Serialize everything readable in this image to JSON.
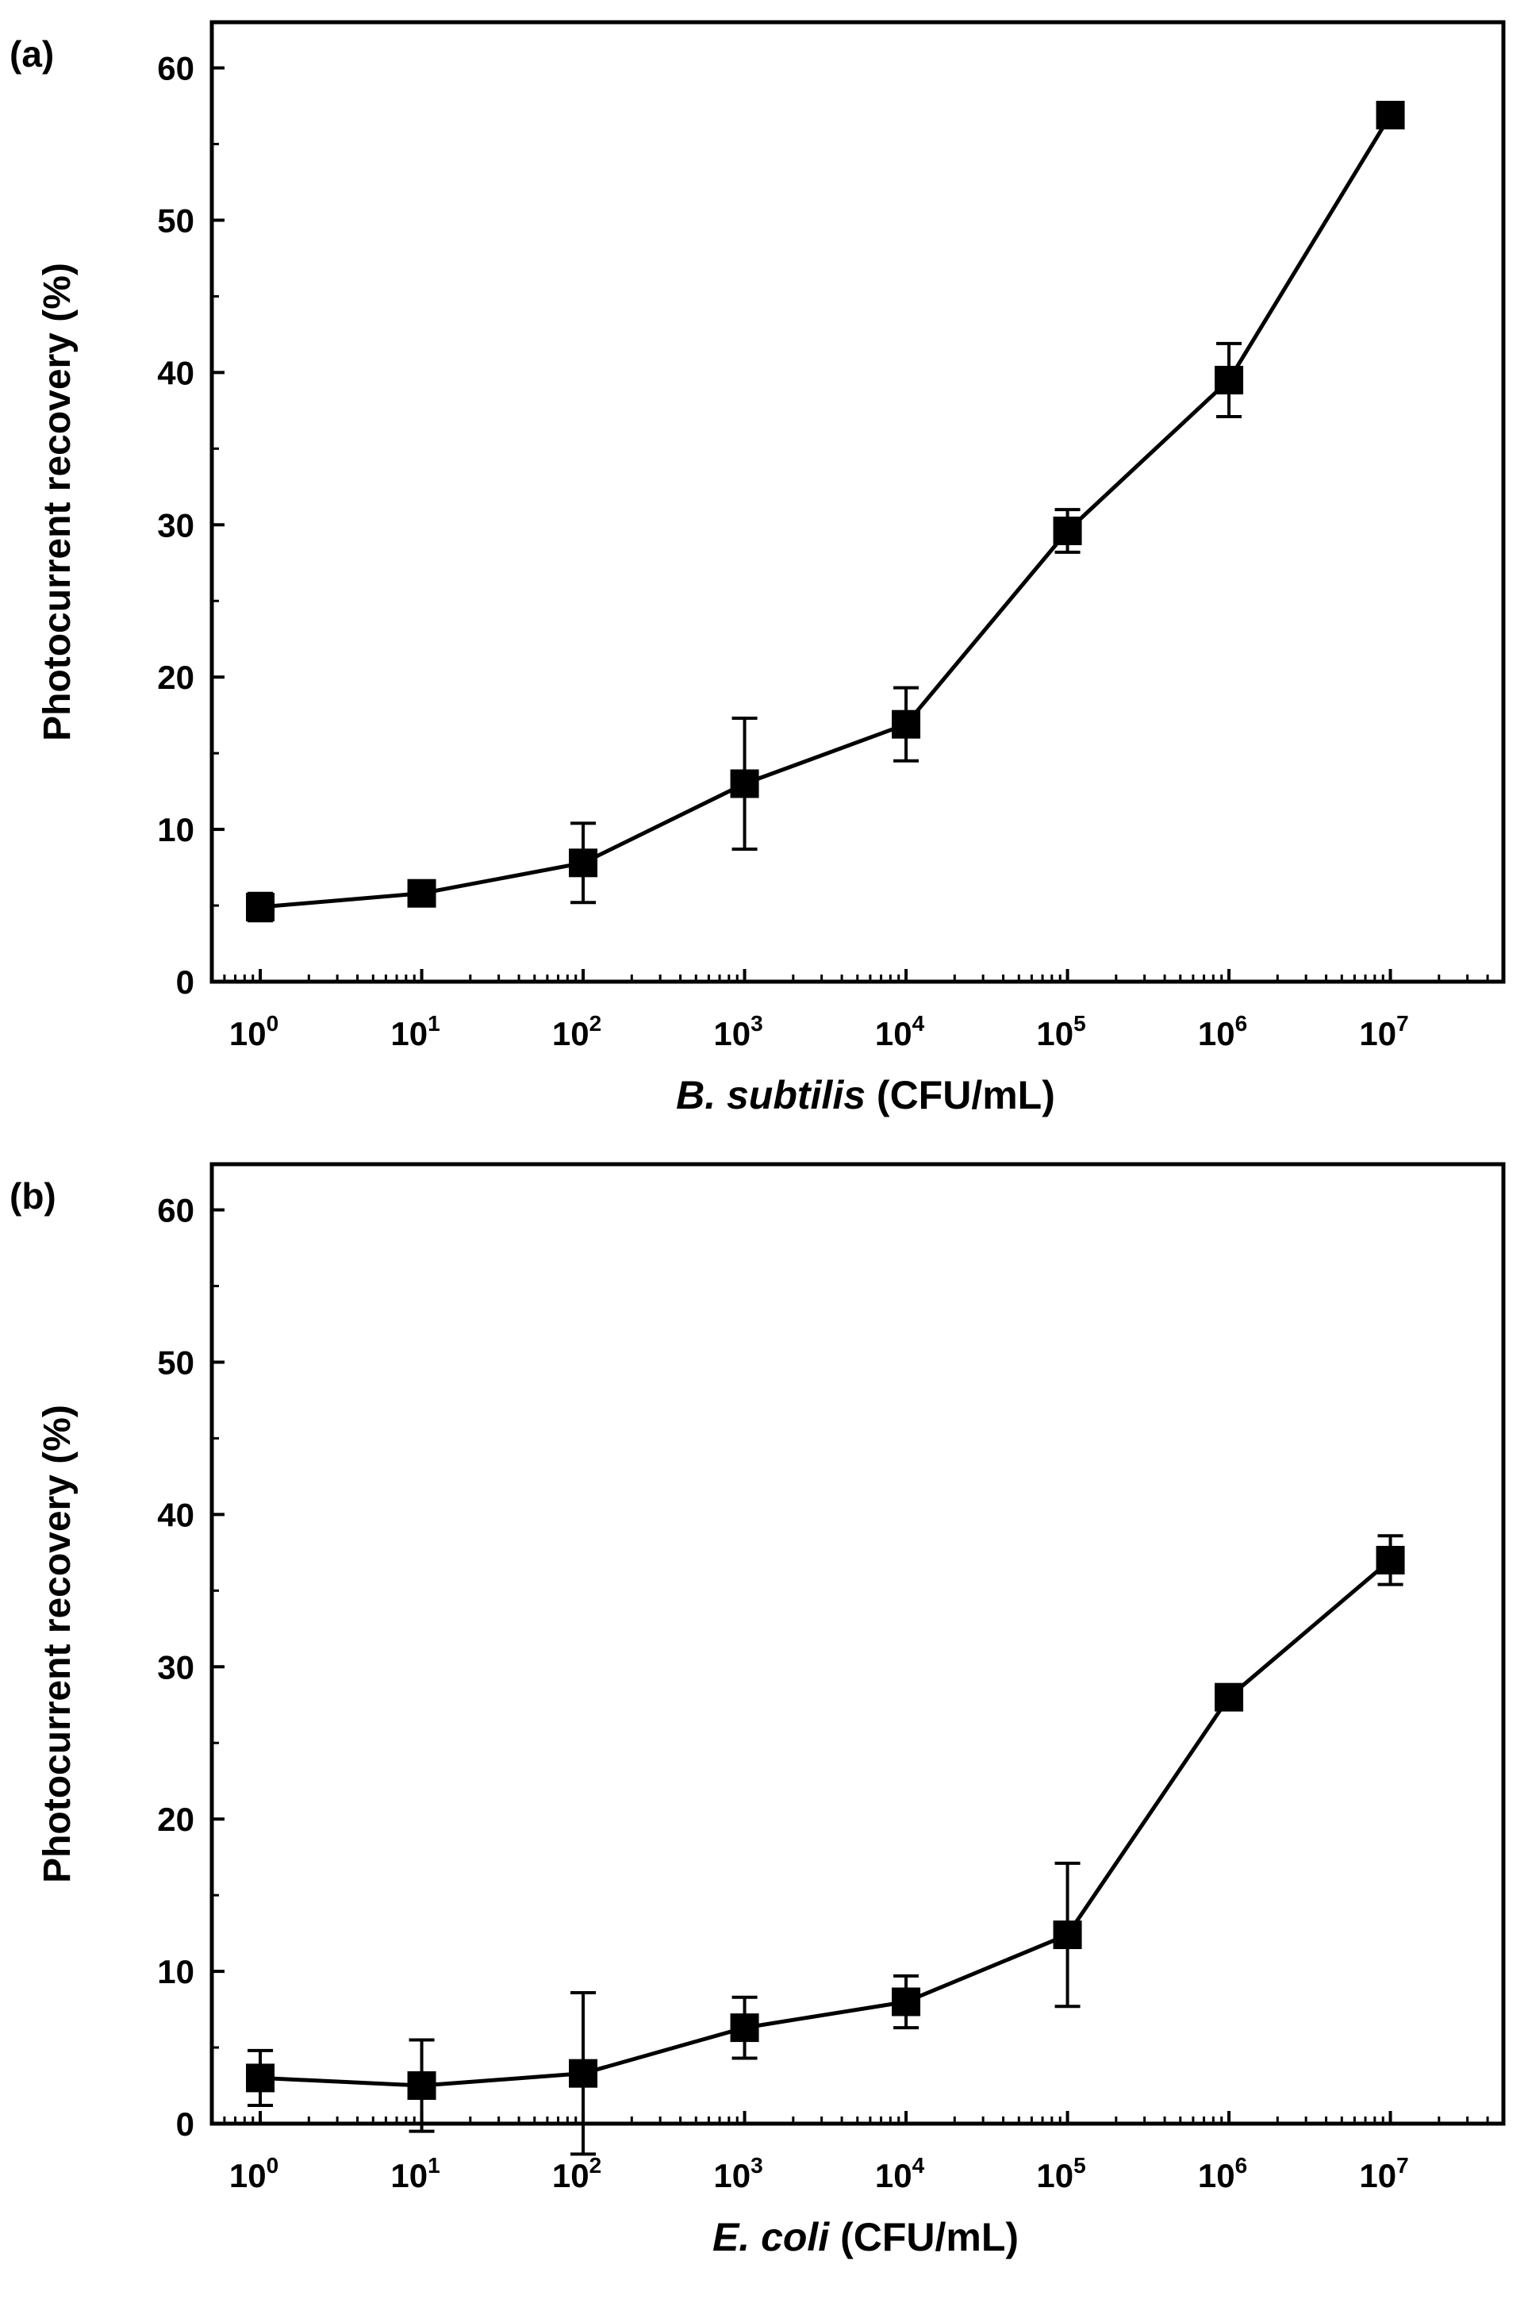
{
  "chart_data": [
    {
      "panel_label": "(a)",
      "type": "line",
      "xscale": "log",
      "x": [
        1,
        10,
        100,
        1000,
        10000,
        100000,
        1000000,
        10000000
      ],
      "xtick_bases": [
        "10",
        "10",
        "10",
        "10",
        "10",
        "10",
        "10",
        "10"
      ],
      "xtick_exponents": [
        "0",
        "1",
        "2",
        "3",
        "4",
        "5",
        "6",
        "7"
      ],
      "xlim_exponent": [
        -0.3,
        7.7
      ],
      "series": [
        {
          "name": "B. subtilis",
          "values": [
            4.9,
            5.8,
            7.8,
            13.0,
            16.9,
            29.6,
            39.5,
            56.9
          ],
          "errors": [
            0.9,
            0.6,
            2.6,
            4.3,
            2.4,
            1.4,
            2.4,
            0.5
          ]
        }
      ],
      "ylim": [
        0,
        63
      ],
      "yticks": [
        0,
        10,
        20,
        30,
        40,
        50,
        60
      ],
      "ylabel": "Photocurrent recovery (%)",
      "xlabel_italic": "B. subtilis",
      "xlabel_rest": " (CFU/mL)"
    },
    {
      "panel_label": "(b)",
      "type": "line",
      "xscale": "log",
      "x": [
        1,
        10,
        100,
        1000,
        10000,
        100000,
        1000000,
        10000000
      ],
      "xtick_bases": [
        "10",
        "10",
        "10",
        "10",
        "10",
        "10",
        "10",
        "10"
      ],
      "xtick_exponents": [
        "0",
        "1",
        "2",
        "3",
        "4",
        "5",
        "6",
        "7"
      ],
      "xlim_exponent": [
        -0.3,
        7.7
      ],
      "series": [
        {
          "name": "E. coli",
          "values": [
            3.0,
            2.5,
            3.3,
            6.3,
            8.0,
            12.4,
            28.0,
            37.0
          ],
          "errors": [
            1.8,
            3.0,
            5.3,
            2.0,
            1.7,
            4.7,
            0.8,
            1.6
          ]
        }
      ],
      "ylim": [
        0,
        63
      ],
      "yticks": [
        0,
        10,
        20,
        30,
        40,
        50,
        60
      ],
      "ylabel": "Photocurrent recovery (%)",
      "xlabel_italic": "E. coli",
      "xlabel_rest": " (CFU/mL)"
    }
  ]
}
